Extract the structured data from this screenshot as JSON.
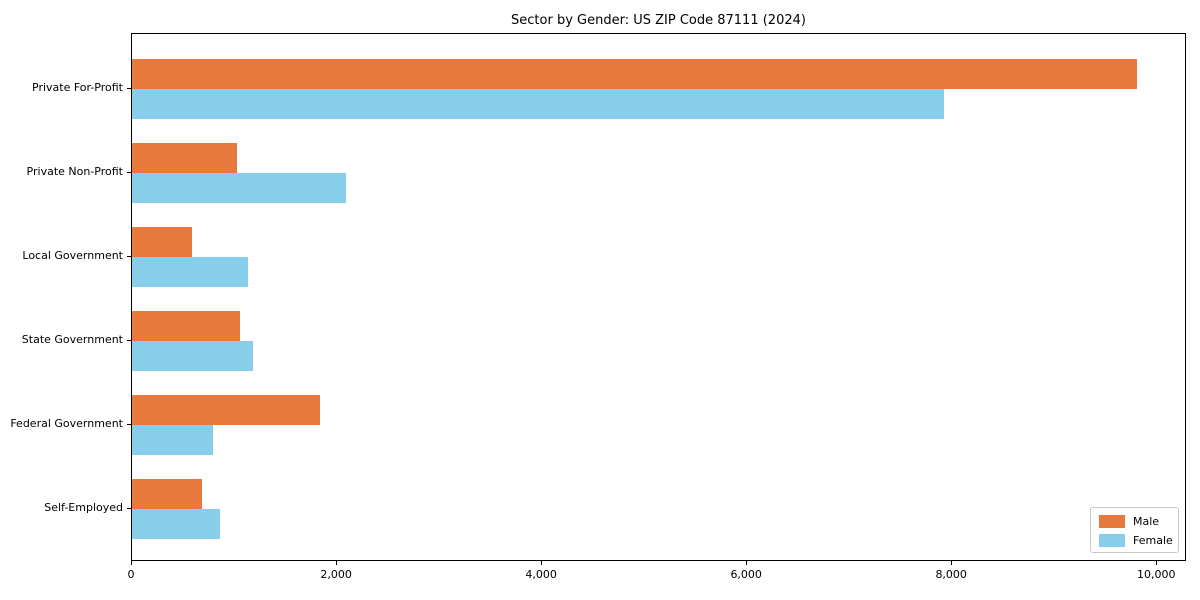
{
  "title": "Sector by Gender: US ZIP Code 87111 (2024)",
  "chart_data": {
    "type": "bar",
    "orientation": "horizontal",
    "title": "Sector by Gender: US ZIP Code 87111 (2024)",
    "categories": [
      "Private For-Profit",
      "Private Non-Profit",
      "Local Government",
      "State Government",
      "Federal Government",
      "Self-Employed"
    ],
    "series": [
      {
        "name": "Male",
        "color": "#e8793d",
        "values": [
          9800,
          1020,
          580,
          1050,
          1830,
          680
        ]
      },
      {
        "name": "Female",
        "color": "#87ceeb",
        "values": [
          7920,
          2090,
          1130,
          1180,
          790,
          860
        ]
      }
    ],
    "xlabel": "",
    "ylabel": "",
    "xlim": [
      0,
      10290
    ],
    "x_ticks": [
      0,
      2000,
      4000,
      6000,
      8000,
      10000
    ],
    "x_tick_labels": [
      "0",
      "2,000",
      "4,000",
      "6,000",
      "8,000",
      "10,000"
    ],
    "grid": false,
    "legend_position": "lower right"
  }
}
